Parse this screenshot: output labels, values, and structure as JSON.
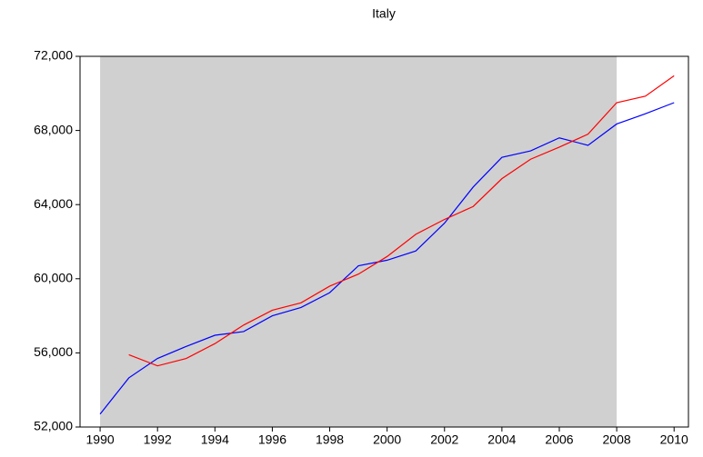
{
  "chart_data": {
    "type": "line",
    "title": "Italy",
    "x": [
      1990,
      1991,
      1992,
      1993,
      1994,
      1995,
      1996,
      1997,
      1998,
      1999,
      2000,
      2001,
      2002,
      2003,
      2004,
      2005,
      2006,
      2007,
      2008,
      2009,
      2010
    ],
    "series": [
      {
        "color": "#0000ff",
        "values": [
          52700,
          54650,
          55700,
          56350,
          56950,
          57150,
          58000,
          58450,
          59250,
          60700,
          61000,
          61500,
          63000,
          64950,
          66550,
          66900,
          67600,
          67200,
          68350,
          68900,
          69500
        ]
      },
      {
        "color": "#ff0000",
        "values": [
          null,
          55900,
          55300,
          55700,
          56500,
          57500,
          58300,
          58700,
          59600,
          60250,
          61200,
          62400,
          63200,
          63900,
          65400,
          66450,
          67100,
          67800,
          69500,
          69850,
          70950
        ]
      }
    ],
    "xlim": [
      1989.3,
      2010.5
    ],
    "xticks": [
      1990,
      1992,
      1994,
      1996,
      1998,
      2000,
      2002,
      2004,
      2006,
      2008,
      2010
    ],
    "ylim": [
      52000,
      72000
    ],
    "yticks": [
      {
        "value": 52000,
        "label": "52,000"
      },
      {
        "value": 56000,
        "label": "56,000"
      },
      {
        "value": 60000,
        "label": "60,000"
      },
      {
        "value": 64000,
        "label": "64,000"
      },
      {
        "value": 68000,
        "label": "68,000"
      },
      {
        "value": 72000,
        "label": "72,000"
      }
    ],
    "shade": {
      "from": 1990,
      "to": 2008,
      "color": "#d0d0d0"
    }
  }
}
